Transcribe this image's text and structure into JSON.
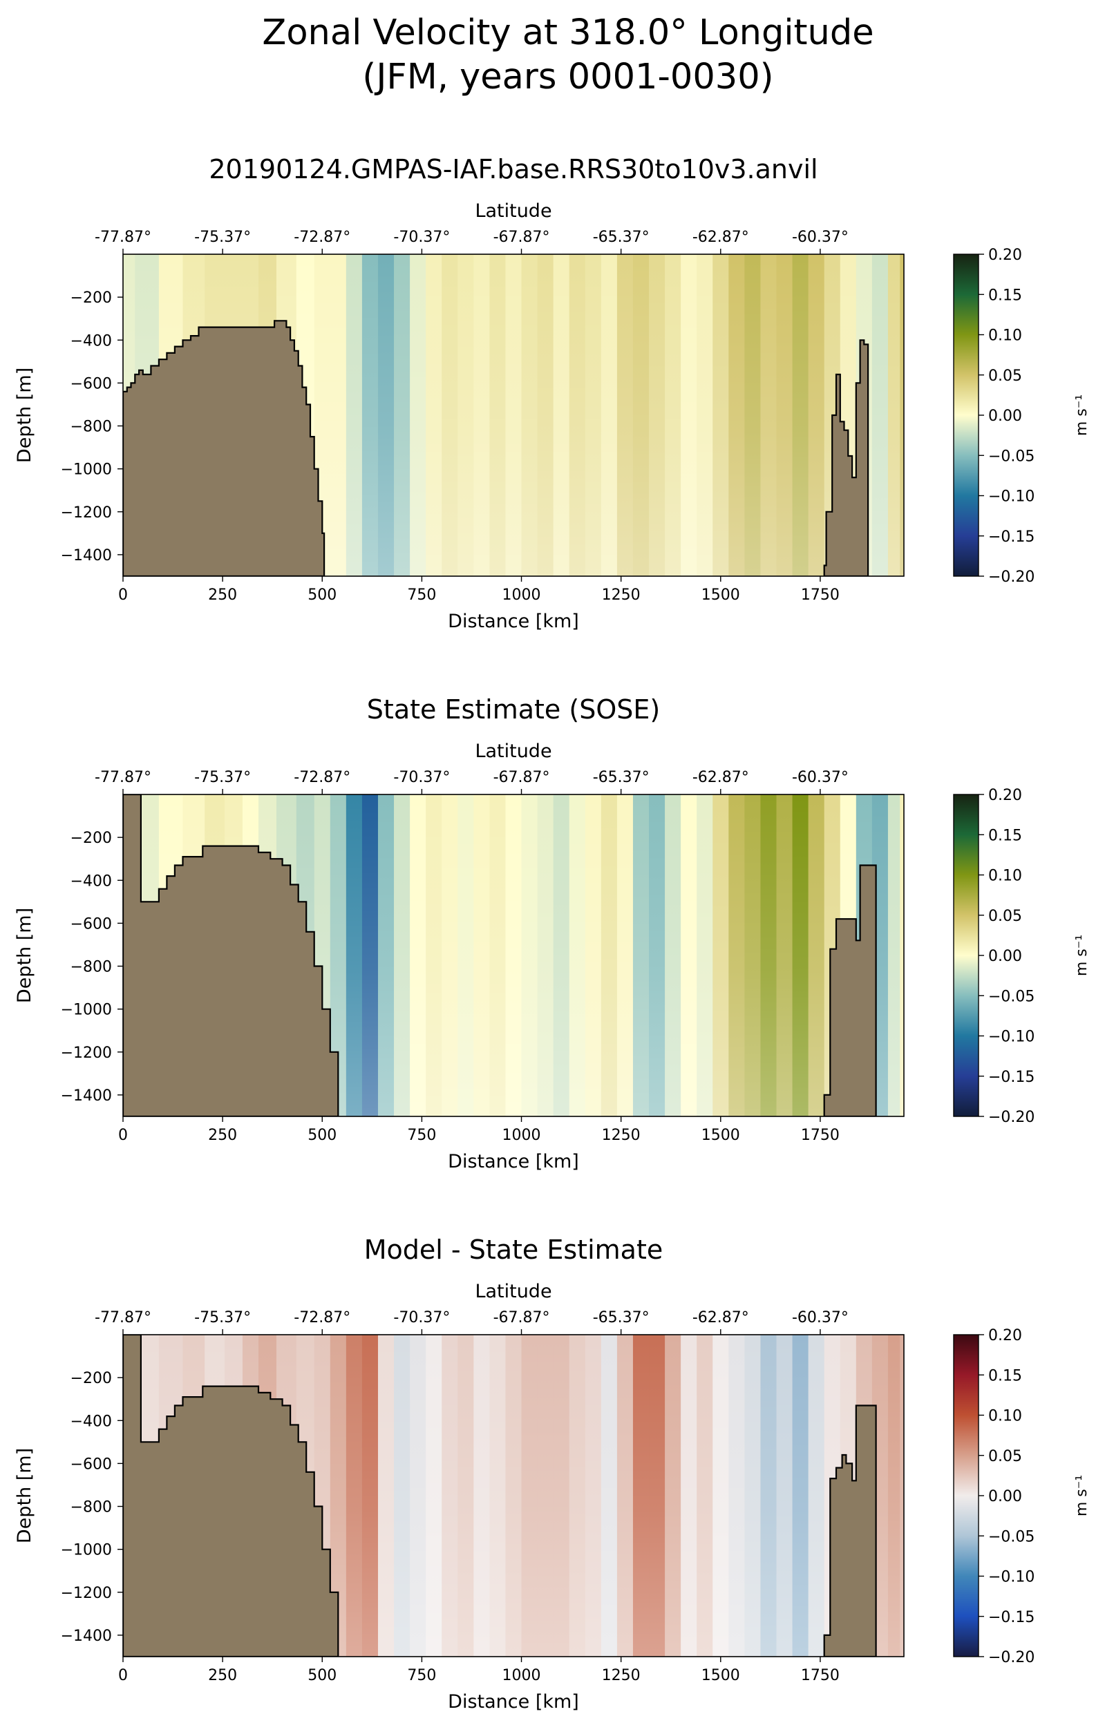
{
  "figure": {
    "title_line1": "Zonal Velocity at 318.0° Longitude",
    "title_line2": "(JFM, years 0001-0030)"
  },
  "colors": {
    "land": "#8b7b61",
    "land_edge": "#000000"
  },
  "chart_data": [
    {
      "type": "heatmap",
      "title": "20190124.GMPAS-IAF.base.RRS30to10v3.anvil",
      "xlabel": "Distance [km]",
      "ylabel": "Depth [m]",
      "top_xlabel": "Latitude",
      "xlim": [
        0,
        1960
      ],
      "ylim": [
        -1500,
        0
      ],
      "xticks": [
        0,
        250,
        500,
        750,
        1000,
        1250,
        1500,
        1750
      ],
      "yticks": [
        -200,
        -400,
        -600,
        -800,
        -1000,
        -1200,
        -1400
      ],
      "top_xtick_labels": [
        "-77.87°",
        "-75.37°",
        "-72.87°",
        "-70.37°",
        "-67.87°",
        "-65.37°",
        "-62.87°",
        "-60.37°"
      ],
      "colormap": "delta_like",
      "colorbar": {
        "label": "m s⁻¹",
        "vmin": -0.2,
        "vmax": 0.2,
        "ticks": [
          0.2,
          0.15,
          0.1,
          0.05,
          0.0,
          -0.05,
          -0.1,
          -0.15,
          -0.2
        ],
        "tick_labels": [
          "0.20",
          "0.15",
          "0.10",
          "0.05",
          "0.00",
          "−0.05",
          "−0.10",
          "−0.15",
          "−0.20"
        ]
      },
      "velocity_profile": {
        "distance_km": [
          0,
          60,
          120,
          180,
          230,
          280,
          320,
          360,
          410,
          460,
          500,
          540,
          580,
          620,
          660,
          700,
          740,
          780,
          820,
          860,
          900,
          940,
          980,
          1020,
          1060,
          1100,
          1140,
          1180,
          1220,
          1260,
          1300,
          1340,
          1380,
          1420,
          1460,
          1500,
          1540,
          1580,
          1620,
          1660,
          1700,
          1740,
          1780,
          1820,
          1860,
          1900,
          1940,
          1960
        ],
        "surface_velocity_m_s": [
          -0.01,
          -0.015,
          0.005,
          0.015,
          0.02,
          0.02,
          0.02,
          0.025,
          0.01,
          0.0,
          0.005,
          0.005,
          -0.02,
          -0.05,
          -0.06,
          -0.04,
          -0.01,
          0.01,
          0.02,
          0.015,
          0.01,
          0.02,
          0.01,
          0.02,
          0.025,
          0.01,
          0.025,
          0.02,
          0.01,
          0.035,
          0.04,
          0.03,
          0.02,
          0.005,
          0.01,
          0.03,
          0.05,
          0.06,
          0.045,
          0.05,
          0.065,
          0.05,
          0.03,
          0.01,
          -0.01,
          -0.02,
          0.03,
          0.05
        ]
      },
      "bathymetry": {
        "distance_km": [
          0,
          10,
          20,
          30,
          40,
          50,
          70,
          90,
          110,
          130,
          150,
          170,
          190,
          220,
          260,
          300,
          340,
          380,
          400,
          410,
          420,
          430,
          440,
          450,
          460,
          470,
          480,
          490,
          500,
          505,
          1760,
          1765,
          1780,
          1790,
          1800,
          1810,
          1820,
          1830,
          1840,
          1850,
          1860,
          1870
        ],
        "depth_m": [
          -640,
          -620,
          -600,
          -560,
          -540,
          -560,
          -520,
          -490,
          -460,
          -430,
          -400,
          -380,
          -340,
          -340,
          -340,
          -340,
          -340,
          -310,
          -310,
          -340,
          -400,
          -450,
          -520,
          -620,
          -700,
          -850,
          -1000,
          -1150,
          -1300,
          -1420,
          -1450,
          -1200,
          -750,
          -560,
          -780,
          -820,
          -940,
          -1040,
          -600,
          -400,
          -420,
          -1000
        ]
      }
    },
    {
      "type": "heatmap",
      "title": "State Estimate (SOSE)",
      "xlabel": "Distance [km]",
      "ylabel": "Depth [m]",
      "top_xlabel": "Latitude",
      "xlim": [
        0,
        1960
      ],
      "ylim": [
        -1500,
        0
      ],
      "xticks": [
        0,
        250,
        500,
        750,
        1000,
        1250,
        1500,
        1750
      ],
      "yticks": [
        -200,
        -400,
        -600,
        -800,
        -1000,
        -1200,
        -1400
      ],
      "top_xtick_labels": [
        "-77.87°",
        "-75.37°",
        "-72.87°",
        "-70.37°",
        "-67.87°",
        "-65.37°",
        "-62.87°",
        "-60.37°"
      ],
      "colormap": "delta_like",
      "colorbar": {
        "label": "m s⁻¹",
        "vmin": -0.2,
        "vmax": 0.2,
        "ticks": [
          0.2,
          0.15,
          0.1,
          0.05,
          0.0,
          -0.05,
          -0.1,
          -0.15,
          -0.2
        ],
        "tick_labels": [
          "0.20",
          "0.15",
          "0.10",
          "0.05",
          "0.00",
          "−0.05",
          "−0.10",
          "−0.15",
          "−0.20"
        ]
      },
      "velocity_profile": {
        "distance_km": [
          0,
          60,
          120,
          180,
          230,
          280,
          320,
          360,
          410,
          460,
          500,
          540,
          580,
          620,
          660,
          700,
          740,
          780,
          820,
          860,
          900,
          940,
          980,
          1020,
          1060,
          1100,
          1140,
          1180,
          1220,
          1260,
          1300,
          1340,
          1380,
          1420,
          1460,
          1500,
          1540,
          1580,
          1620,
          1660,
          1700,
          1740,
          1780,
          1820,
          1860,
          1900,
          1940,
          1960
        ],
        "surface_velocity_m_s": [
          -0.02,
          -0.01,
          0.0,
          0.005,
          0.015,
          0.01,
          0.0,
          -0.01,
          -0.02,
          -0.03,
          -0.02,
          -0.04,
          -0.09,
          -0.12,
          -0.05,
          -0.02,
          0.0,
          0.01,
          0.005,
          -0.005,
          0.005,
          0.01,
          0.0,
          -0.005,
          -0.01,
          -0.02,
          -0.005,
          0.005,
          0.02,
          0.005,
          -0.04,
          -0.05,
          -0.02,
          0.0,
          -0.01,
          0.03,
          0.06,
          0.07,
          0.09,
          0.07,
          0.1,
          0.06,
          0.03,
          0.0,
          -0.05,
          -0.06,
          -0.02,
          0.01
        ]
      },
      "bathymetry": {
        "distance_km": [
          0,
          40,
          45,
          70,
          90,
          110,
          130,
          150,
          200,
          260,
          310,
          340,
          370,
          400,
          420,
          440,
          460,
          480,
          500,
          520,
          540,
          1760,
          1775,
          1790,
          1820,
          1840,
          1850,
          1880,
          1890
        ],
        "depth_m": [
          0,
          0,
          -500,
          -500,
          -440,
          -380,
          -330,
          -290,
          -240,
          -240,
          -240,
          -270,
          -300,
          -330,
          -420,
          -500,
          -640,
          -800,
          -1000,
          -1200,
          -1400,
          -1400,
          -720,
          -580,
          -580,
          -680,
          -330,
          -330,
          -1180
        ]
      }
    },
    {
      "type": "heatmap",
      "title": "Model - State Estimate",
      "xlabel": "Distance [km]",
      "ylabel": "Depth [m]",
      "top_xlabel": "Latitude",
      "xlim": [
        0,
        1960
      ],
      "ylim": [
        -1500,
        0
      ],
      "xticks": [
        0,
        250,
        500,
        750,
        1000,
        1250,
        1500,
        1750
      ],
      "yticks": [
        -200,
        -400,
        -600,
        -800,
        -1000,
        -1200,
        -1400
      ],
      "top_xtick_labels": [
        "-77.87°",
        "-75.37°",
        "-72.87°",
        "-70.37°",
        "-67.87°",
        "-65.37°",
        "-62.87°",
        "-60.37°"
      ],
      "colormap": "balance_like",
      "colorbar": {
        "label": "m s⁻¹",
        "vmin": -0.2,
        "vmax": 0.2,
        "ticks": [
          0.2,
          0.15,
          0.1,
          0.05,
          0.0,
          -0.05,
          -0.1,
          -0.15,
          -0.2
        ],
        "tick_labels": [
          "0.20",
          "0.15",
          "0.10",
          "0.05",
          "0.00",
          "−0.05",
          "−0.10",
          "−0.15",
          "−0.20"
        ]
      },
      "velocity_profile": {
        "distance_km": [
          0,
          60,
          120,
          180,
          230,
          280,
          320,
          360,
          410,
          460,
          500,
          540,
          580,
          620,
          660,
          700,
          740,
          780,
          820,
          860,
          900,
          940,
          980,
          1020,
          1060,
          1100,
          1140,
          1180,
          1220,
          1260,
          1300,
          1340,
          1380,
          1420,
          1460,
          1500,
          1540,
          1580,
          1620,
          1660,
          1700,
          1740,
          1780,
          1820,
          1860,
          1900,
          1940,
          1960
        ],
        "surface_velocity_m_s": [
          0.005,
          0.01,
          0.015,
          0.02,
          0.01,
          0.015,
          0.03,
          0.04,
          0.025,
          0.02,
          0.025,
          0.045,
          0.07,
          0.08,
          0.01,
          -0.02,
          -0.01,
          0.0,
          0.015,
          0.02,
          0.005,
          0.01,
          0.02,
          0.03,
          0.03,
          0.03,
          0.02,
          0.015,
          -0.01,
          0.03,
          0.08,
          0.08,
          0.04,
          0.005,
          0.02,
          0.0,
          -0.01,
          -0.02,
          -0.05,
          -0.03,
          -0.06,
          -0.02,
          0.005,
          0.01,
          0.03,
          0.04,
          0.05,
          0.04
        ]
      },
      "bathymetry": {
        "distance_km": [
          0,
          40,
          45,
          70,
          90,
          110,
          130,
          150,
          200,
          260,
          310,
          340,
          370,
          400,
          420,
          440,
          460,
          480,
          500,
          520,
          540,
          1760,
          1775,
          1790,
          1805,
          1815,
          1830,
          1840,
          1850,
          1880,
          1890
        ],
        "depth_m": [
          0,
          0,
          -500,
          -500,
          -440,
          -380,
          -330,
          -290,
          -240,
          -240,
          -240,
          -270,
          -300,
          -330,
          -420,
          -500,
          -640,
          -800,
          -1000,
          -1200,
          -1400,
          -1400,
          -670,
          -620,
          -560,
          -600,
          -680,
          -330,
          -330,
          -330,
          -1180
        ]
      }
    }
  ]
}
